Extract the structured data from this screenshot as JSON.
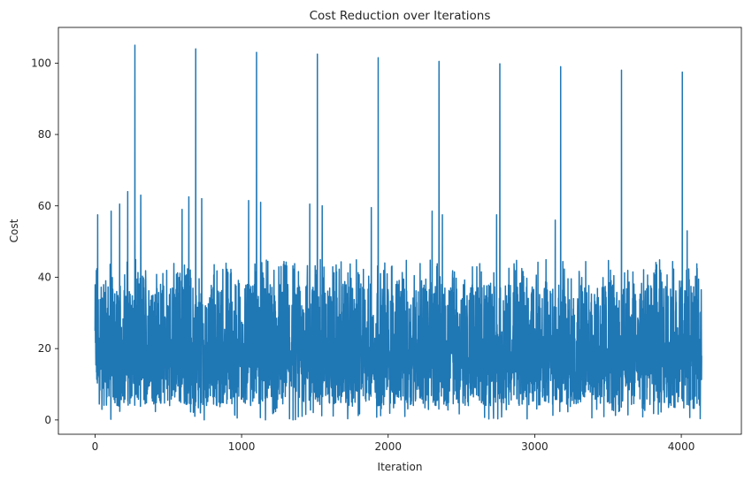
{
  "chart_data": {
    "type": "line",
    "title": "Cost Reduction over Iterations",
    "xlabel": "Iteration",
    "ylabel": "Cost",
    "xlim": [
      -250,
      4410
    ],
    "ylim": [
      -4,
      110
    ],
    "xticks": [
      0,
      1000,
      2000,
      3000,
      4000
    ],
    "yticks": [
      0,
      20,
      40,
      60,
      80,
      100
    ],
    "grid": false,
    "legend": "none",
    "series": [
      {
        "color": "#1f77b4",
        "n_points": 4140,
        "y_start": 25,
        "y_end": 18,
        "y_typical_range": [
          0,
          50
        ],
        "spikes": [
          {
            "x": 272,
            "y": 105
          },
          {
            "x": 687,
            "y": 104
          },
          {
            "x": 1102,
            "y": 103
          },
          {
            "x": 1517,
            "y": 102.5
          },
          {
            "x": 1932,
            "y": 101.5
          },
          {
            "x": 2347,
            "y": 100.5
          },
          {
            "x": 2762,
            "y": 99.8
          },
          {
            "x": 3177,
            "y": 99
          },
          {
            "x": 3592,
            "y": 98
          },
          {
            "x": 4007,
            "y": 97.5
          }
        ],
        "secondary_peaks": [
          {
            "x": 18,
            "y": 57.5
          },
          {
            "x": 110,
            "y": 58.5
          },
          {
            "x": 168,
            "y": 60.5
          },
          {
            "x": 223,
            "y": 64
          },
          {
            "x": 312,
            "y": 63
          },
          {
            "x": 594,
            "y": 59
          },
          {
            "x": 640,
            "y": 62.5
          },
          {
            "x": 728,
            "y": 62
          },
          {
            "x": 1048,
            "y": 61.5
          },
          {
            "x": 1130,
            "y": 61
          },
          {
            "x": 1465,
            "y": 60.5
          },
          {
            "x": 1550,
            "y": 60
          },
          {
            "x": 1885,
            "y": 59.5
          },
          {
            "x": 2300,
            "y": 58.5
          },
          {
            "x": 2370,
            "y": 57.5
          },
          {
            "x": 2740,
            "y": 57.5
          },
          {
            "x": 3140,
            "y": 56
          },
          {
            "x": 4040,
            "y": 53
          }
        ]
      }
    ]
  }
}
